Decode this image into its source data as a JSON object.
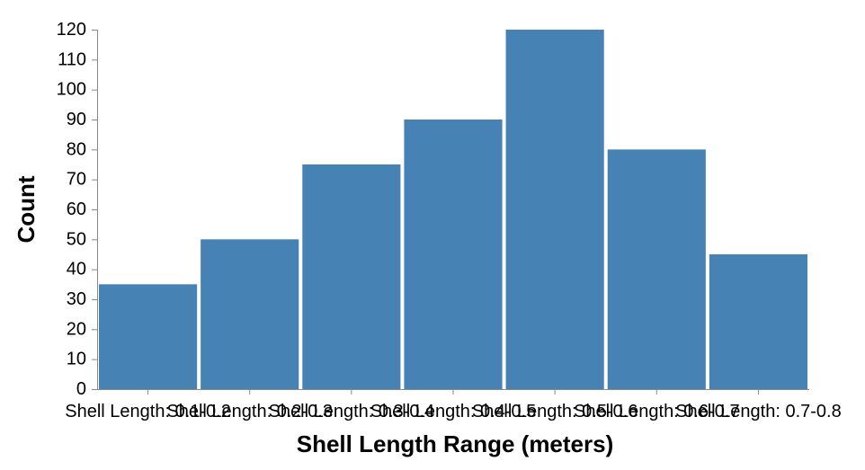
{
  "chart_data": {
    "type": "bar",
    "title": "",
    "xlabel": "Shell Length Range (meters)",
    "ylabel": "Count",
    "categories": [
      "Shell Length: 0.1-0.2",
      "Shell Length: 0.2-0.3",
      "Shell Length: 0.3-0.4",
      "Shell Length: 0.4-0.5",
      "Shell Length: 0.5-0.6",
      "Shell Length: 0.6-0.7",
      "Shell Length: 0.7-0.8"
    ],
    "values": [
      35,
      50,
      75,
      90,
      120,
      80,
      45
    ],
    "ylim": [
      0,
      120
    ],
    "yticks": [
      0,
      10,
      20,
      30,
      40,
      50,
      60,
      70,
      80,
      90,
      100,
      110,
      120
    ],
    "bar_color": "#4682b4",
    "grid": false,
    "legend": "none"
  }
}
